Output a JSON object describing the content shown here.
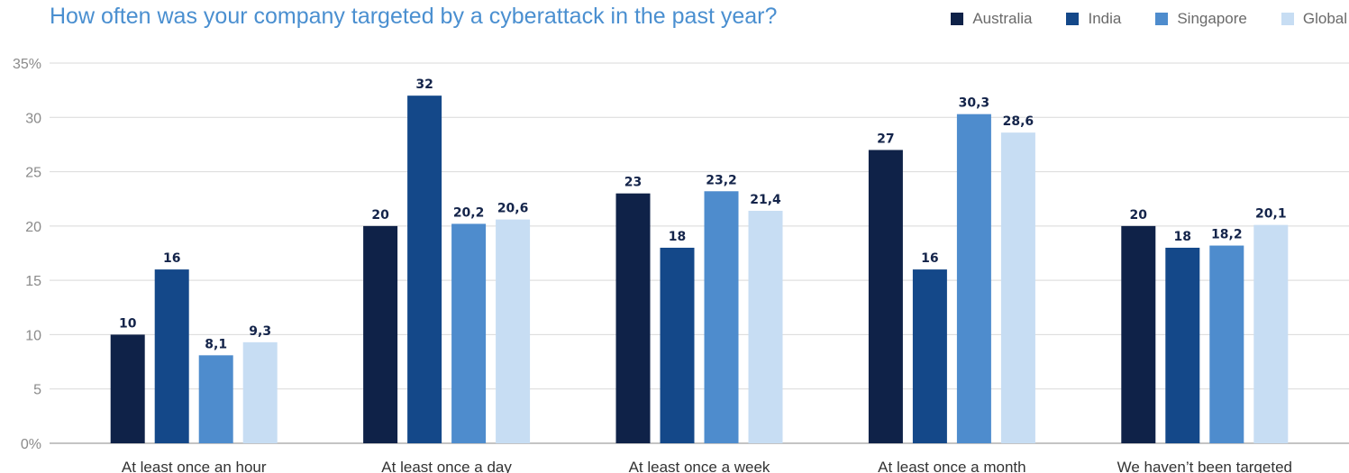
{
  "chart_data": {
    "type": "bar",
    "title": "How often was your company targeted by a cyberattack in the past year?",
    "categories": [
      "At least once an hour",
      "At least once a day",
      "At least once a week",
      "At least once a month",
      "We haven’t been targeted"
    ],
    "series": [
      {
        "name": "Australia",
        "color": "#0f2248",
        "values": [
          10,
          20,
          23,
          27,
          20
        ],
        "labels": [
          "10",
          "20",
          "23",
          "27",
          "20"
        ]
      },
      {
        "name": "India",
        "color": "#144889",
        "values": [
          16,
          32,
          18,
          16,
          18
        ],
        "labels": [
          "16",
          "32",
          "18",
          "16",
          "18"
        ]
      },
      {
        "name": "Singapore",
        "color": "#4e8ccd",
        "values": [
          8.1,
          20.2,
          23.2,
          30.3,
          18.2
        ],
        "labels": [
          "8,1",
          "20,2",
          "23,2",
          "30,3",
          "18,2"
        ]
      },
      {
        "name": "Global",
        "color": "#c7ddf3",
        "values": [
          9.3,
          20.6,
          21.4,
          28.6,
          20.1
        ],
        "labels": [
          "9,3",
          "20,6",
          "21,4",
          "28,6",
          "20,1"
        ]
      }
    ],
    "ylim": [
      0,
      35
    ],
    "yticks": [
      "0%",
      "5",
      "10",
      "15",
      "20",
      "25",
      "30",
      "35%"
    ],
    "ytick_values": [
      0,
      5,
      10,
      15,
      20,
      25,
      30,
      35
    ],
    "grid": true,
    "legend_position": "top-right"
  }
}
